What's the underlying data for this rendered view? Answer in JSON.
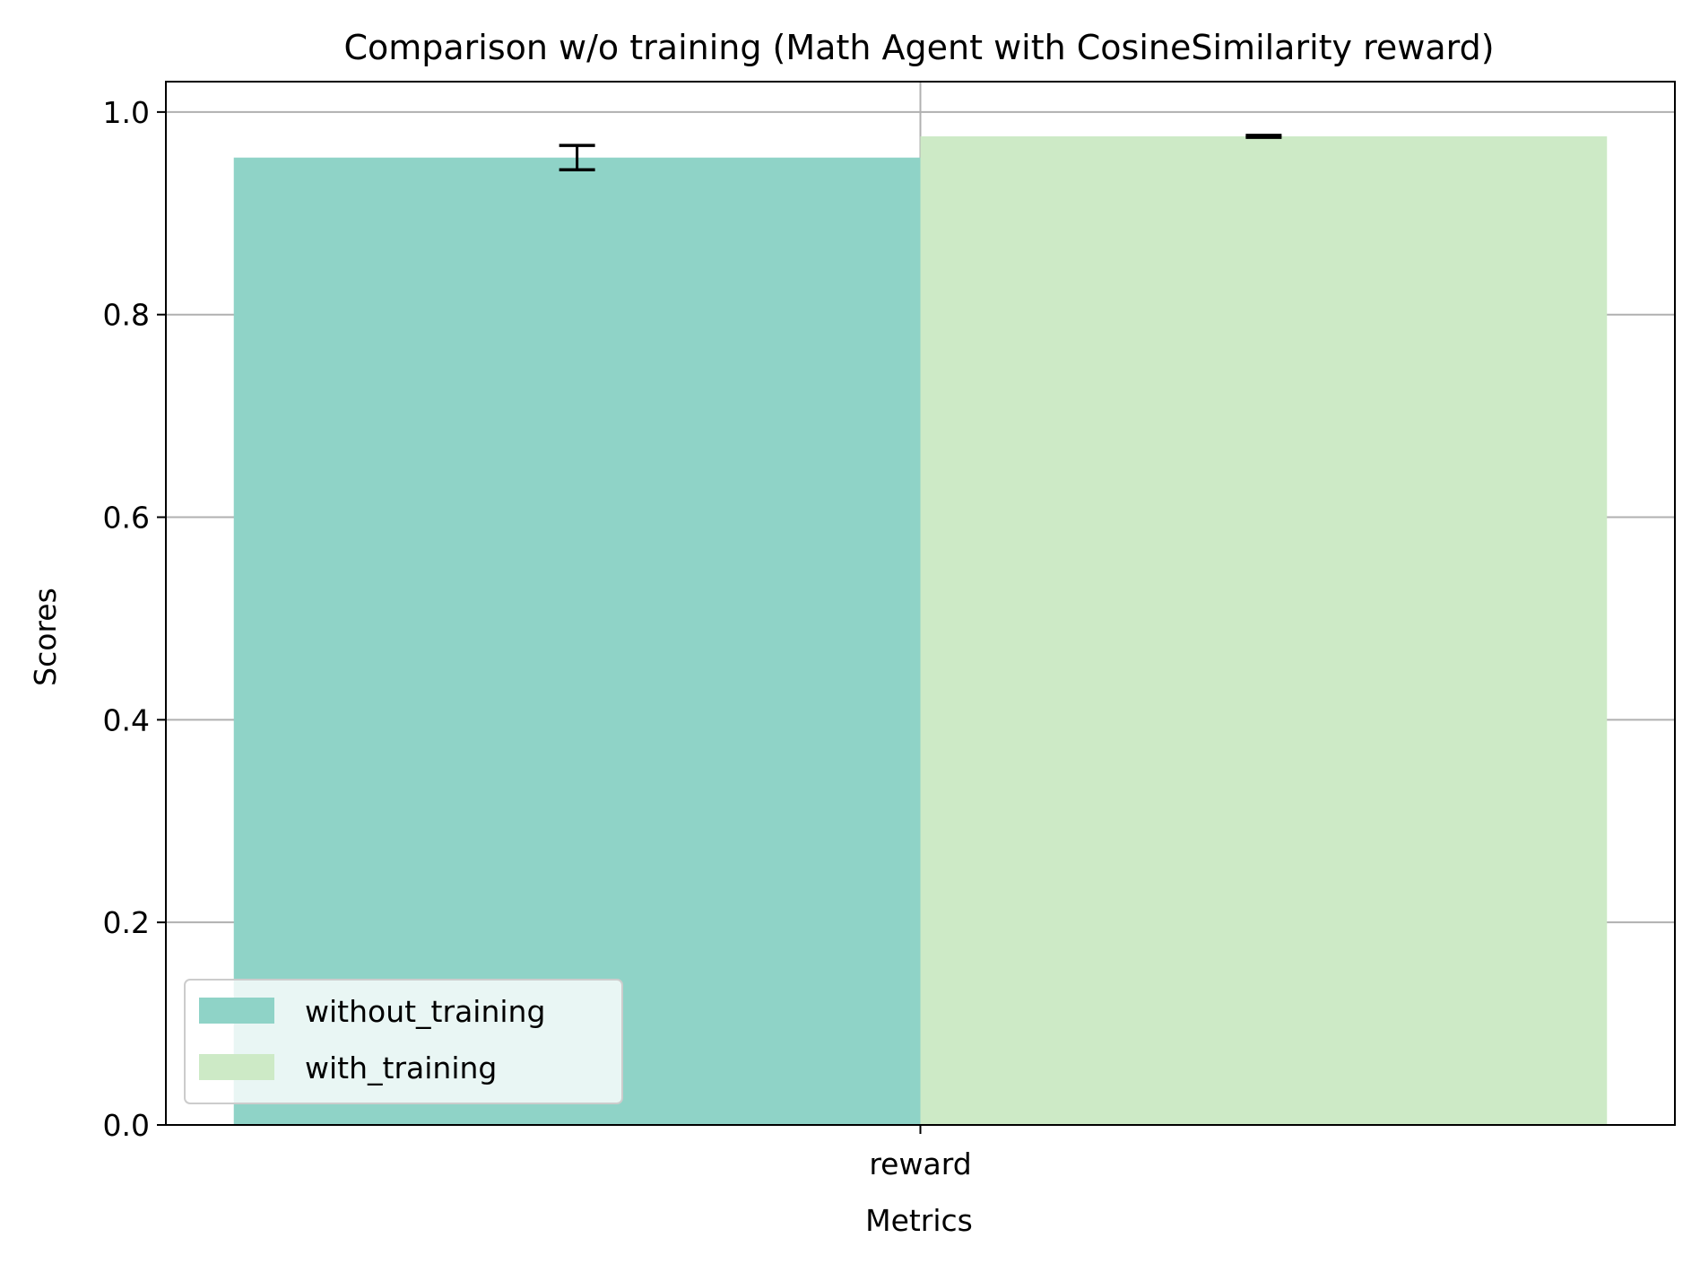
{
  "chart_data": {
    "type": "bar",
    "title": "Comparison w/o training (Math Agent with CosineSimilarity reward)",
    "xlabel": "Metrics",
    "ylabel": "Scores",
    "categories": [
      "reward"
    ],
    "ylim": [
      0,
      1.03
    ],
    "yticks": [
      0.0,
      0.2,
      0.4,
      0.6,
      0.8,
      1.0
    ],
    "ytick_labels": [
      "0.0",
      "0.2",
      "0.4",
      "0.6",
      "0.8",
      "1.0"
    ],
    "grid": true,
    "legend_position": "lower-left",
    "series": [
      {
        "name": "without_training",
        "values": [
          0.955
        ],
        "errors": [
          0.012
        ],
        "color": "#8fd3c7"
      },
      {
        "name": "with_training",
        "values": [
          0.976
        ],
        "errors": [
          0.001
        ],
        "color": "#cdeac6"
      }
    ]
  }
}
